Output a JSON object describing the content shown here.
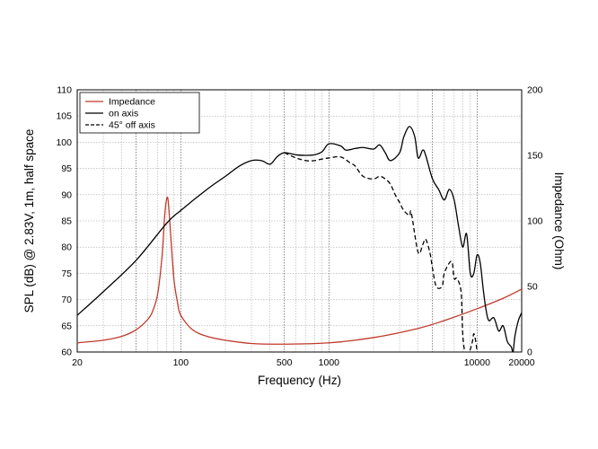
{
  "chart_data": {
    "type": "line",
    "xlabel": "Frequency (Hz)",
    "ylabel_left": "SPL (dB) @ 2.83V, 1m, half space",
    "ylabel_right": "Impedance (Ohm)",
    "x_scale": "log",
    "xlim": [
      20,
      20000
    ],
    "ylim_left": [
      60,
      110
    ],
    "ylim_right": [
      0,
      200
    ],
    "x_ticks": [
      20,
      100,
      500,
      1000,
      10000,
      20000
    ],
    "x_tick_labels": [
      "20",
      "100",
      "500",
      "1000",
      "10000",
      "20000"
    ],
    "y_left_ticks": [
      60,
      65,
      70,
      75,
      80,
      85,
      90,
      95,
      100,
      105,
      110
    ],
    "y_left_tick_labels": [
      "60",
      "65",
      "70",
      "75",
      "80",
      "85",
      "90",
      "95",
      "100",
      "105",
      "110"
    ],
    "y_right_ticks": [
      0,
      50,
      100,
      150,
      200
    ],
    "y_right_tick_labels": [
      "0",
      "50",
      "100",
      "150",
      "200"
    ],
    "grid": true,
    "legend_position": "top-left",
    "series": [
      {
        "name": "Impedance",
        "axis": "right",
        "color": "#c0392b",
        "style": "solid",
        "points": [
          [
            20,
            7
          ],
          [
            30,
            9
          ],
          [
            40,
            12
          ],
          [
            50,
            17
          ],
          [
            60,
            25
          ],
          [
            65,
            32
          ],
          [
            70,
            45
          ],
          [
            75,
            75
          ],
          [
            78,
            105
          ],
          [
            81,
            118
          ],
          [
            83,
            110
          ],
          [
            86,
            85
          ],
          [
            90,
            55
          ],
          [
            95,
            38
          ],
          [
            100,
            28
          ],
          [
            120,
            17
          ],
          [
            150,
            12
          ],
          [
            200,
            9
          ],
          [
            300,
            6.5
          ],
          [
            500,
            6
          ],
          [
            1000,
            7
          ],
          [
            2000,
            11
          ],
          [
            4000,
            18
          ],
          [
            6000,
            24
          ],
          [
            10000,
            33
          ],
          [
            15000,
            41
          ],
          [
            20000,
            48
          ]
        ]
      },
      {
        "name": "on axis",
        "axis": "left",
        "color": "#000000",
        "style": "solid",
        "points": [
          [
            20,
            67
          ],
          [
            30,
            71.5
          ],
          [
            50,
            77.5
          ],
          [
            80,
            84.5
          ],
          [
            100,
            87
          ],
          [
            150,
            91
          ],
          [
            200,
            93.5
          ],
          [
            250,
            95.5
          ],
          [
            300,
            96.5
          ],
          [
            350,
            96.5
          ],
          [
            380,
            96
          ],
          [
            400,
            95.8
          ],
          [
            420,
            96.3
          ],
          [
            450,
            97.3
          ],
          [
            500,
            98
          ],
          [
            600,
            97.6
          ],
          [
            700,
            97.5
          ],
          [
            800,
            97.6
          ],
          [
            900,
            98.2
          ],
          [
            1000,
            99.7
          ],
          [
            1200,
            99.3
          ],
          [
            1300,
            98.5
          ],
          [
            1500,
            98.8
          ],
          [
            1700,
            99
          ],
          [
            2000,
            98.7
          ],
          [
            2200,
            99.5
          ],
          [
            2400,
            98
          ],
          [
            2600,
            96.5
          ],
          [
            3000,
            98
          ],
          [
            3200,
            101
          ],
          [
            3500,
            103
          ],
          [
            3800,
            101
          ],
          [
            4000,
            97
          ],
          [
            4300,
            98.5
          ],
          [
            4500,
            97.5
          ],
          [
            5000,
            93
          ],
          [
            5500,
            91
          ],
          [
            6000,
            89
          ],
          [
            6500,
            91
          ],
          [
            7000,
            89
          ],
          [
            7500,
            84
          ],
          [
            8000,
            80
          ],
          [
            8500,
            82.5
          ],
          [
            9000,
            75
          ],
          [
            9500,
            75
          ],
          [
            10000,
            78.5
          ],
          [
            10500,
            77
          ],
          [
            11000,
            72
          ],
          [
            11500,
            68
          ],
          [
            12000,
            66
          ],
          [
            13000,
            66.5
          ],
          [
            14000,
            64
          ],
          [
            15000,
            65
          ],
          [
            16000,
            62
          ],
          [
            17000,
            61
          ],
          [
            17500,
            60
          ],
          [
            18000,
            63
          ],
          [
            19000,
            66
          ],
          [
            20000,
            67.5
          ]
        ]
      },
      {
        "name": "45° off axis",
        "axis": "left",
        "color": "#000000",
        "style": "dashed",
        "points": [
          [
            500,
            98
          ],
          [
            600,
            97
          ],
          [
            700,
            96.5
          ],
          [
            800,
            96.5
          ],
          [
            900,
            96.8
          ],
          [
            1000,
            97
          ],
          [
            1200,
            97.2
          ],
          [
            1400,
            96
          ],
          [
            1500,
            95.5
          ],
          [
            1700,
            93.5
          ],
          [
            2000,
            93
          ],
          [
            2200,
            93.5
          ],
          [
            2400,
            93
          ],
          [
            2600,
            92
          ],
          [
            2800,
            90
          ],
          [
            3000,
            88.5
          ],
          [
            3200,
            87
          ],
          [
            3500,
            86
          ],
          [
            3600,
            86.5
          ],
          [
            4000,
            79
          ],
          [
            4300,
            80.5
          ],
          [
            4500,
            81.5
          ],
          [
            4800,
            79
          ],
          [
            5000,
            76
          ],
          [
            5300,
            72.5
          ],
          [
            5800,
            72.5
          ],
          [
            6000,
            75
          ],
          [
            6500,
            77
          ],
          [
            6800,
            77
          ],
          [
            7000,
            74
          ],
          [
            7300,
            74
          ],
          [
            7800,
            71.5
          ],
          [
            8000,
            63.5
          ],
          [
            8300,
            60
          ],
          [
            8800,
            60
          ],
          [
            9000,
            60.5
          ],
          [
            9300,
            62
          ],
          [
            9500,
            63.5
          ],
          [
            9800,
            62
          ],
          [
            10000,
            60
          ]
        ]
      }
    ]
  }
}
